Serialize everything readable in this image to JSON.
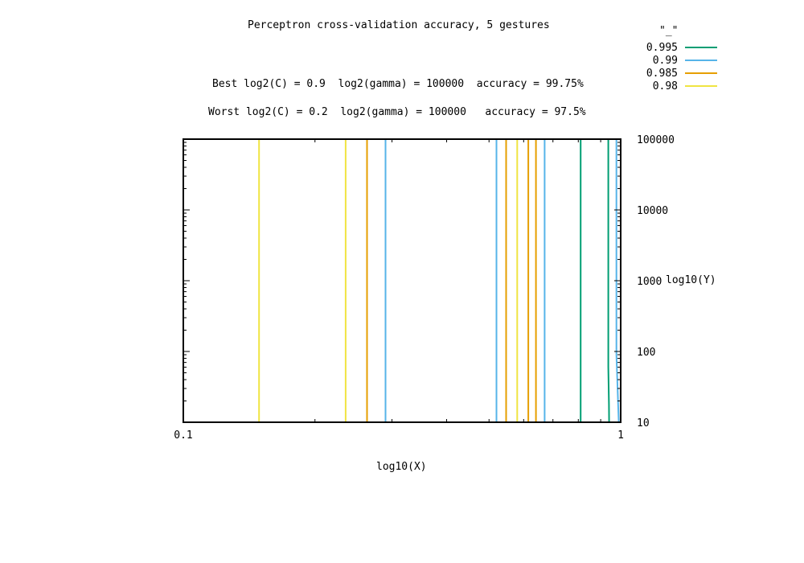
{
  "chart_data": {
    "type": "line",
    "title": "Perceptron cross-validation accuracy, 5 gestures",
    "annotations": [
      "Best log2(C) = 0.9  log2(gamma) = 100000  accuracy = 99.75%",
      "Worst log2(C) = 0.2  log2(gamma) = 100000   accuracy = 97.5%"
    ],
    "xlabel": "log10(X)",
    "ylabel": "log10(Y)",
    "x_scale": "log",
    "y_scale": "log",
    "xlim": [
      0.1,
      1
    ],
    "ylim": [
      10,
      100000
    ],
    "x_ticks": [
      "0.1",
      "1"
    ],
    "y_ticks": [
      "10",
      "100",
      "1000",
      "10000",
      "100000"
    ],
    "y_axis_side": "right",
    "legend_title": "\"_\"",
    "legend_position": "top-right",
    "grid": false,
    "series": [
      {
        "name": "0.995",
        "color": "#009e73",
        "lines": [
          {
            "x": [
              0.81,
              0.81
            ],
            "y": [
              10,
              100000
            ]
          },
          {
            "x": [
              0.937,
              0.937,
              0.94,
              0.941
            ],
            "y": [
              100000,
              60,
              18,
              10
            ]
          }
        ]
      },
      {
        "name": "0.99",
        "color": "#56b4e9",
        "lines": [
          {
            "x": [
              0.29,
              0.29
            ],
            "y": [
              10,
              100000
            ]
          },
          {
            "x": [
              0.52,
              0.52
            ],
            "y": [
              10,
              100000
            ]
          },
          {
            "x": [
              0.67,
              0.67
            ],
            "y": [
              10,
              100000
            ]
          },
          {
            "x": [
              0.978,
              0.978,
              0.99
            ],
            "y": [
              100000,
              90,
              10
            ]
          }
        ]
      },
      {
        "name": "0.985",
        "color": "#e69f00",
        "lines": [
          {
            "x": [
              0.1,
              0.1
            ],
            "y": [
              10,
              100000
            ]
          },
          {
            "x": [
              0.263,
              0.263
            ],
            "y": [
              10,
              100000
            ]
          },
          {
            "x": [
              0.547,
              0.547
            ],
            "y": [
              10,
              100000
            ]
          },
          {
            "x": [
              0.615,
              0.615
            ],
            "y": [
              10,
              100000
            ]
          },
          {
            "x": [
              0.64,
              0.64
            ],
            "y": [
              10,
              100000
            ]
          }
        ]
      },
      {
        "name": "0.98",
        "color": "#f0e442",
        "lines": [
          {
            "x": [
              0.149,
              0.149
            ],
            "y": [
              10,
              100000
            ]
          },
          {
            "x": [
              0.235,
              0.235
            ],
            "y": [
              10,
              100000
            ]
          },
          {
            "x": [
              0.58,
              0.58
            ],
            "y": [
              10,
              100000
            ]
          }
        ]
      }
    ]
  }
}
